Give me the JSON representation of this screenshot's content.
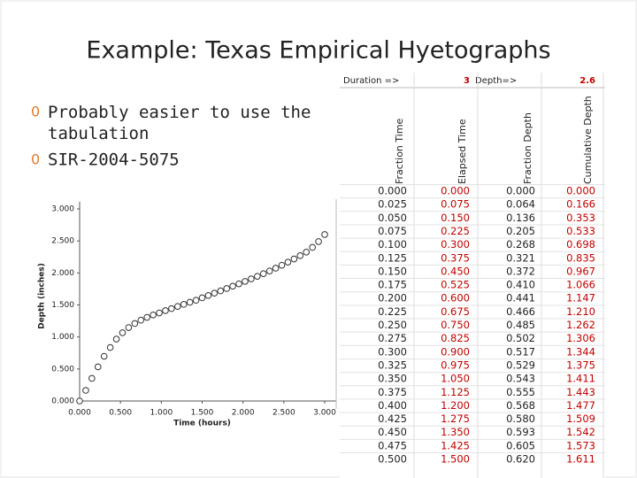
{
  "title": "Example: Texas Empirical Hyetographs",
  "bullet_symbol": "0",
  "bullets": [
    "Probably easier to use the tabulation",
    "SIR-2004-5075"
  ],
  "chart_data": {
    "type": "scatter",
    "xlabel": "Time (hours)",
    "ylabel": "Depth (inches)",
    "x": [
      0,
      0.075,
      0.15,
      0.225,
      0.3,
      0.375,
      0.45,
      0.525,
      0.6,
      0.675,
      0.75,
      0.825,
      0.9,
      0.975,
      1.05,
      1.125,
      1.2,
      1.275,
      1.35,
      1.425,
      1.5,
      1.575,
      1.65,
      1.725,
      1.8,
      1.875,
      1.95,
      2.025,
      2.1,
      2.175,
      2.25,
      2.325,
      2.4,
      2.475,
      2.55,
      2.625,
      2.7,
      2.775,
      2.85,
      2.925,
      3.0
    ],
    "values": [
      0,
      0.166,
      0.353,
      0.533,
      0.698,
      0.835,
      0.967,
      1.066,
      1.147,
      1.21,
      1.262,
      1.306,
      1.344,
      1.375,
      1.411,
      1.443,
      1.477,
      1.509,
      1.542,
      1.573,
      1.611,
      1.648,
      1.684,
      1.72,
      1.756,
      1.793,
      1.83,
      1.868,
      1.907,
      1.947,
      1.988,
      2.03,
      2.074,
      2.12,
      2.168,
      2.218,
      2.27,
      2.325,
      2.399,
      2.49,
      2.6
    ],
    "color": "#333333",
    "xlim": [
      0,
      3
    ],
    "ylim": [
      0,
      3
    ],
    "xticks": [
      {
        "value": 0,
        "label": "0.000"
      },
      {
        "value": 0.5,
        "label": "0.500"
      },
      {
        "value": 1,
        "label": "1.000"
      },
      {
        "value": 1.5,
        "label": "1.500"
      },
      {
        "value": 2,
        "label": "2.000"
      },
      {
        "value": 2.5,
        "label": "2.500"
      },
      {
        "value": 3,
        "label": "3.000"
      }
    ],
    "yticks": [
      {
        "value": 0,
        "label": "0.000"
      },
      {
        "value": 0.5,
        "label": "0.500"
      },
      {
        "value": 1,
        "label": "1.000"
      },
      {
        "value": 1.5,
        "label": "1.500"
      },
      {
        "value": 2,
        "label": "2.000"
      },
      {
        "value": 2.5,
        "label": "2.500"
      },
      {
        "value": 3,
        "label": "3.000"
      }
    ]
  },
  "table": {
    "top_row": [
      "Duration =>",
      "3",
      "Depth=>",
      "2.6"
    ],
    "headers": [
      "Fraction Time",
      "Elapsed Time",
      "Fraction Depth",
      "Cumulative Depth"
    ],
    "rows": [
      [
        "0.000",
        "0.000",
        "0.000",
        "0.000"
      ],
      [
        "0.025",
        "0.075",
        "0.064",
        "0.166"
      ],
      [
        "0.050",
        "0.150",
        "0.136",
        "0.353"
      ],
      [
        "0.075",
        "0.225",
        "0.205",
        "0.533"
      ],
      [
        "0.100",
        "0.300",
        "0.268",
        "0.698"
      ],
      [
        "0.125",
        "0.375",
        "0.321",
        "0.835"
      ],
      [
        "0.150",
        "0.450",
        "0.372",
        "0.967"
      ],
      [
        "0.175",
        "0.525",
        "0.410",
        "1.066"
      ],
      [
        "0.200",
        "0.600",
        "0.441",
        "1.147"
      ],
      [
        "0.225",
        "0.675",
        "0.466",
        "1.210"
      ],
      [
        "0.250",
        "0.750",
        "0.485",
        "1.262"
      ],
      [
        "0.275",
        "0.825",
        "0.502",
        "1.306"
      ],
      [
        "0.300",
        "0.900",
        "0.517",
        "1.344"
      ],
      [
        "0.325",
        "0.975",
        "0.529",
        "1.375"
      ],
      [
        "0.350",
        "1.050",
        "0.543",
        "1.411"
      ],
      [
        "0.375",
        "1.125",
        "0.555",
        "1.443"
      ],
      [
        "0.400",
        "1.200",
        "0.568",
        "1.477"
      ],
      [
        "0.425",
        "1.275",
        "0.580",
        "1.509"
      ],
      [
        "0.450",
        "1.350",
        "0.593",
        "1.542"
      ],
      [
        "0.475",
        "1.425",
        "0.605",
        "1.573"
      ],
      [
        "0.500",
        "1.500",
        "0.620",
        "1.611"
      ]
    ]
  }
}
